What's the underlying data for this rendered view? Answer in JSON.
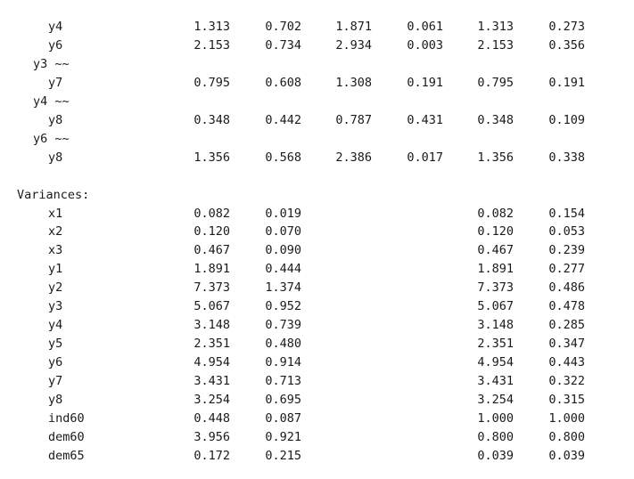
{
  "regressions_tail": [
    {
      "kind": "row",
      "label": "y4",
      "values": [
        "1.313",
        "0.702",
        "1.871",
        "0.061",
        "1.313",
        "0.273"
      ]
    },
    {
      "kind": "row",
      "label": "y6",
      "values": [
        "2.153",
        "0.734",
        "2.934",
        "0.003",
        "2.153",
        "0.356"
      ]
    },
    {
      "kind": "group",
      "label": "y3 ~~"
    },
    {
      "kind": "row",
      "label": "y7",
      "values": [
        "0.795",
        "0.608",
        "1.308",
        "0.191",
        "0.795",
        "0.191"
      ]
    },
    {
      "kind": "group",
      "label": "y4 ~~"
    },
    {
      "kind": "row",
      "label": "y8",
      "values": [
        "0.348",
        "0.442",
        "0.787",
        "0.431",
        "0.348",
        "0.109"
      ]
    },
    {
      "kind": "group",
      "label": "y6 ~~"
    },
    {
      "kind": "row",
      "label": "y8",
      "values": [
        "1.356",
        "0.568",
        "2.386",
        "0.017",
        "1.356",
        "0.338"
      ]
    }
  ],
  "variances": {
    "title": "Variances:",
    "rows": [
      {
        "label": "x1",
        "estimate": "0.082",
        "std_err": "0.019",
        "std_lv": "0.082",
        "std_all": "0.154"
      },
      {
        "label": "x2",
        "estimate": "0.120",
        "std_err": "0.070",
        "std_lv": "0.120",
        "std_all": "0.053"
      },
      {
        "label": "x3",
        "estimate": "0.467",
        "std_err": "0.090",
        "std_lv": "0.467",
        "std_all": "0.239"
      },
      {
        "label": "y1",
        "estimate": "1.891",
        "std_err": "0.444",
        "std_lv": "1.891",
        "std_all": "0.277"
      },
      {
        "label": "y2",
        "estimate": "7.373",
        "std_err": "1.374",
        "std_lv": "7.373",
        "std_all": "0.486"
      },
      {
        "label": "y3",
        "estimate": "5.067",
        "std_err": "0.952",
        "std_lv": "5.067",
        "std_all": "0.478"
      },
      {
        "label": "y4",
        "estimate": "3.148",
        "std_err": "0.739",
        "std_lv": "3.148",
        "std_all": "0.285"
      },
      {
        "label": "y5",
        "estimate": "2.351",
        "std_err": "0.480",
        "std_lv": "2.351",
        "std_all": "0.347"
      },
      {
        "label": "y6",
        "estimate": "4.954",
        "std_err": "0.914",
        "std_lv": "4.954",
        "std_all": "0.443"
      },
      {
        "label": "y7",
        "estimate": "3.431",
        "std_err": "0.713",
        "std_lv": "3.431",
        "std_all": "0.322"
      },
      {
        "label": "y8",
        "estimate": "3.254",
        "std_err": "0.695",
        "std_lv": "3.254",
        "std_all": "0.315"
      },
      {
        "label": "ind60",
        "estimate": "0.448",
        "std_err": "0.087",
        "std_lv": "1.000",
        "std_all": "1.000"
      },
      {
        "label": "dem60",
        "estimate": "3.956",
        "std_err": "0.921",
        "std_lv": "0.800",
        "std_all": "0.800"
      },
      {
        "label": "dem65",
        "estimate": "0.172",
        "std_err": "0.215",
        "std_lv": "0.039",
        "std_all": "0.039"
      }
    ]
  }
}
